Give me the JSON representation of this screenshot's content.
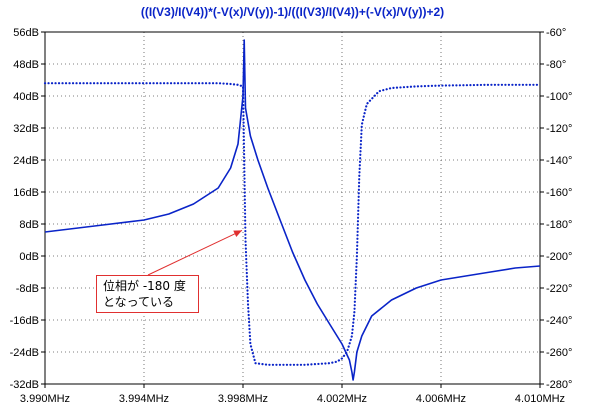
{
  "chart_data": {
    "type": "line",
    "title": "((I(V3)/I(V4))*(-V(x)/V(y))-1)/((I(V3)/I(V4))+(-V(x)/V(y))+2)",
    "x_unit": "MHz",
    "xlim": [
      3.99,
      4.01
    ],
    "x_ticks": [
      "3.990MHz",
      "3.994MHz",
      "3.998MHz",
      "4.002MHz",
      "4.006MHz",
      "4.010MHz"
    ],
    "y_left_label": "",
    "y_left_lim": [
      -32,
      56
    ],
    "y_left_ticks": [
      "56dB",
      "48dB",
      "40dB",
      "32dB",
      "24dB",
      "16dB",
      "8dB",
      "0dB",
      "-8dB",
      "-16dB",
      "-24dB",
      "-32dB"
    ],
    "y_right_label": "",
    "y_right_lim": [
      -280,
      -60
    ],
    "y_right_ticks": [
      "-60°",
      "-80°",
      "-100°",
      "-120°",
      "-140°",
      "-160°",
      "-180°",
      "-200°",
      "-220°",
      "-240°",
      "-260°",
      "-280°"
    ],
    "grid": true,
    "series": [
      {
        "style": "solid",
        "axis": "left",
        "x": [
          3.99,
          3.992,
          3.994,
          3.995,
          3.996,
          3.997,
          3.9975,
          3.9978,
          3.998,
          3.99805,
          3.9981,
          3.9983,
          3.9986,
          3.999,
          3.9995,
          4.0,
          4.0005,
          4.001,
          4.0015,
          4.002,
          4.0023,
          4.0024,
          4.00245,
          4.0025,
          4.0026,
          4.0028,
          4.0032,
          4.004,
          4.005,
          4.006,
          4.007,
          4.008,
          4.009,
          4.01
        ],
        "y": [
          6,
          7.5,
          9,
          10.5,
          13,
          17,
          22,
          28,
          40,
          54,
          37,
          30,
          24,
          17,
          9,
          1,
          -6,
          -12,
          -17,
          -22,
          -26,
          -29,
          -31,
          -29,
          -24,
          -20,
          -15,
          -11,
          -8,
          -6,
          -5,
          -4,
          -3,
          -2.5
        ]
      },
      {
        "style": "dotted",
        "axis": "right",
        "x": [
          3.99,
          3.992,
          3.994,
          3.996,
          3.997,
          3.9975,
          3.9978,
          3.998,
          3.99805,
          3.9981,
          3.9982,
          3.9983,
          3.9985,
          3.999,
          3.9995,
          4.0,
          4.0005,
          4.001,
          4.0015,
          4.0018,
          4.002,
          4.0022,
          4.0024,
          4.0025,
          4.0026,
          4.0027,
          4.0028,
          4.003,
          4.0035,
          4.004,
          4.005,
          4.006,
          4.008,
          4.01
        ],
        "y": [
          -92,
          -92,
          -92,
          -92,
          -92,
          -92.5,
          -93,
          -94,
          -140,
          -190,
          -230,
          -255,
          -267,
          -268,
          -268,
          -268,
          -268,
          -267.5,
          -267,
          -266,
          -264,
          -260,
          -250,
          -235,
          -200,
          -150,
          -118,
          -105,
          -97,
          -95,
          -94,
          -93.5,
          -93,
          -93
        ]
      }
    ],
    "annotations": [
      {
        "text_lines": [
          "位相が -180 度",
          "となっている"
        ],
        "points_to": {
          "x": 3.998,
          "y_right": -184
        }
      }
    ],
    "colors": {
      "trace": "#0a24c8",
      "title": "#0a24c8",
      "grid": "#555555",
      "axis": "#000000",
      "annotation_border": "#e03030",
      "annotation_arrow": "#e03030"
    }
  }
}
